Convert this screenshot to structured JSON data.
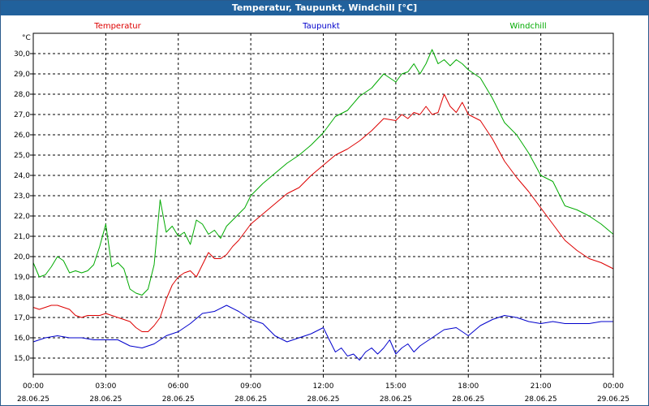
{
  "window": {
    "title": "Temperatur, Taupunkt, Windchill [°C]"
  },
  "chart_data": {
    "type": "line",
    "title": "Temperatur, Taupunkt, Windchill [°C]",
    "ylabel": "°C",
    "xlabel": "",
    "ylim": [
      14.2,
      31.0
    ],
    "y_ticks": [
      "15,0",
      "16,0",
      "17,0",
      "18,0",
      "19,0",
      "20,0",
      "21,0",
      "22,0",
      "23,0",
      "24,0",
      "25,0",
      "26,0",
      "27,0",
      "28,0",
      "29,0",
      "30,0"
    ],
    "y_tick_values": [
      15,
      16,
      17,
      18,
      19,
      20,
      21,
      22,
      23,
      24,
      25,
      26,
      27,
      28,
      29,
      30
    ],
    "xlim": [
      0,
      24
    ],
    "x_tick_values": [
      0,
      3,
      6,
      9,
      12,
      15,
      18,
      21,
      24
    ],
    "x_tick_times": [
      "00:00",
      "03:00",
      "06:00",
      "09:00",
      "12:00",
      "15:00",
      "18:00",
      "21:00",
      "00:00"
    ],
    "x_tick_dates": [
      "28.06.25",
      "28.06.25",
      "28.06.25",
      "28.06.25",
      "28.06.25",
      "28.06.25",
      "28.06.25",
      "28.06.25",
      "29.06.25"
    ],
    "grid": true,
    "legend_position": "top",
    "series": [
      {
        "name": "Temperatur",
        "color": "#dd0000",
        "x": [
          0,
          0.25,
          0.5,
          0.75,
          1,
          1.25,
          1.5,
          1.75,
          2,
          2.25,
          2.5,
          2.75,
          3,
          3.25,
          3.5,
          3.75,
          4,
          4.25,
          4.5,
          4.75,
          5,
          5.25,
          5.5,
          5.75,
          6,
          6.25,
          6.5,
          6.75,
          7,
          7.25,
          7.5,
          7.75,
          8,
          8.25,
          8.5,
          8.75,
          9,
          9.5,
          10,
          10.5,
          11,
          11.5,
          12,
          12.5,
          13,
          13.5,
          14,
          14.5,
          15,
          15.25,
          15.5,
          15.75,
          16,
          16.25,
          16.5,
          16.75,
          17,
          17.25,
          17.5,
          17.75,
          18,
          18.5,
          19,
          19.5,
          20,
          20.5,
          21,
          21.5,
          22,
          22.5,
          23,
          23.5,
          24
        ],
        "values": [
          17.5,
          17.4,
          17.5,
          17.6,
          17.6,
          17.5,
          17.4,
          17.1,
          17.0,
          17.1,
          17.1,
          17.1,
          17.2,
          17.1,
          17.0,
          16.9,
          16.8,
          16.5,
          16.3,
          16.3,
          16.6,
          17.0,
          17.9,
          18.6,
          19.0,
          19.2,
          19.3,
          19.0,
          19.6,
          20.2,
          19.9,
          19.9,
          20.1,
          20.5,
          20.8,
          21.2,
          21.6,
          22.1,
          22.6,
          23.1,
          23.4,
          24.0,
          24.5,
          25.0,
          25.3,
          25.7,
          26.2,
          26.8,
          26.7,
          27.0,
          26.8,
          27.1,
          27.0,
          27.4,
          27.0,
          27.1,
          28.0,
          27.4,
          27.1,
          27.6,
          27.0,
          26.7,
          25.8,
          24.7,
          23.9,
          23.2,
          22.4,
          21.6,
          20.8,
          20.3,
          19.9,
          19.7,
          19.4
        ]
      },
      {
        "name": "Taupunkt",
        "color": "#0000cc",
        "x": [
          0,
          0.5,
          1,
          1.5,
          2,
          2.5,
          3,
          3.5,
          4,
          4.5,
          5,
          5.5,
          6,
          6.5,
          7,
          7.5,
          8,
          8.5,
          9,
          9.5,
          10,
          10.5,
          11,
          11.5,
          12,
          12.25,
          12.5,
          12.75,
          13,
          13.25,
          13.5,
          13.75,
          14,
          14.25,
          14.5,
          14.75,
          15,
          15.25,
          15.5,
          15.75,
          16,
          16.5,
          17,
          17.5,
          18,
          18.5,
          19,
          19.5,
          20,
          20.5,
          21,
          21.5,
          22,
          22.5,
          23,
          23.5,
          24
        ],
        "values": [
          15.8,
          16.0,
          16.1,
          16.0,
          16.0,
          15.9,
          15.9,
          15.9,
          15.6,
          15.5,
          15.7,
          16.1,
          16.3,
          16.7,
          17.2,
          17.3,
          17.6,
          17.3,
          16.9,
          16.7,
          16.1,
          15.8,
          16.0,
          16.2,
          16.5,
          15.9,
          15.3,
          15.5,
          15.1,
          15.2,
          14.9,
          15.3,
          15.5,
          15.2,
          15.5,
          15.9,
          15.2,
          15.5,
          15.7,
          15.3,
          15.6,
          16.0,
          16.4,
          16.5,
          16.1,
          16.6,
          16.9,
          17.1,
          17.0,
          16.8,
          16.7,
          16.8,
          16.7,
          16.7,
          16.7,
          16.8,
          16.8
        ]
      },
      {
        "name": "Windchill",
        "color": "#00aa00",
        "x": [
          0,
          0.25,
          0.5,
          0.75,
          1,
          1.25,
          1.5,
          1.75,
          2,
          2.25,
          2.5,
          2.75,
          3,
          3.25,
          3.5,
          3.75,
          4,
          4.25,
          4.5,
          4.75,
          5,
          5.25,
          5.5,
          5.75,
          6,
          6.25,
          6.5,
          6.75,
          7,
          7.25,
          7.5,
          7.75,
          8,
          8.25,
          8.5,
          8.75,
          9,
          9.5,
          10,
          10.5,
          11,
          11.5,
          12,
          12.5,
          13,
          13.5,
          14,
          14.5,
          15,
          15.25,
          15.5,
          15.75,
          16,
          16.25,
          16.5,
          16.75,
          17,
          17.25,
          17.5,
          17.75,
          18,
          18.5,
          19,
          19.5,
          20,
          20.5,
          21,
          21.5,
          22,
          22.5,
          23,
          23.5,
          24
        ],
        "values": [
          19.7,
          19.0,
          19.1,
          19.5,
          20.0,
          19.8,
          19.2,
          19.3,
          19.2,
          19.3,
          19.6,
          20.5,
          21.6,
          19.5,
          19.7,
          19.4,
          18.4,
          18.2,
          18.1,
          18.4,
          19.6,
          22.8,
          21.2,
          21.5,
          21.0,
          21.2,
          20.6,
          21.8,
          21.6,
          21.1,
          21.3,
          20.9,
          21.5,
          21.8,
          22.1,
          22.4,
          23.0,
          23.6,
          24.1,
          24.6,
          25.0,
          25.5,
          26.1,
          26.9,
          27.2,
          27.9,
          28.3,
          29.0,
          28.6,
          29.0,
          29.1,
          29.5,
          29.0,
          29.5,
          30.2,
          29.5,
          29.7,
          29.4,
          29.7,
          29.5,
          29.2,
          28.8,
          27.8,
          26.6,
          26.0,
          25.1,
          24.0,
          23.7,
          22.5,
          22.3,
          22.0,
          21.6,
          21.1
        ]
      }
    ]
  }
}
